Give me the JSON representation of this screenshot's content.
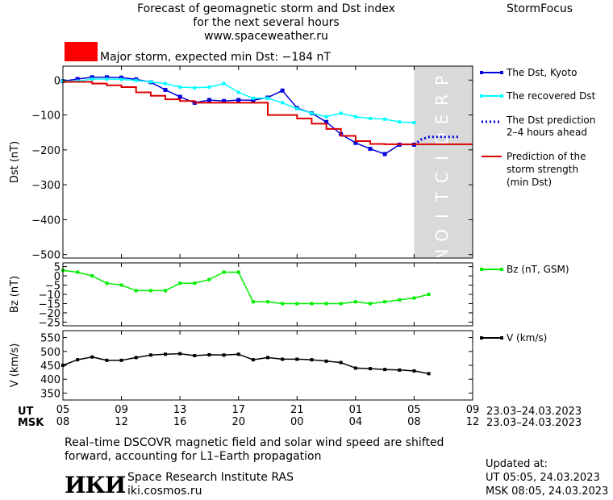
{
  "header": {
    "title_lines": [
      "Forecast of geomagnetic storm and Dst index",
      "for the next several hours",
      "www.spaceweather.ru"
    ],
    "brand": "StormFocus",
    "storm_label": "Major storm, expected min Dst: −184 nT",
    "storm_color": "#ff0000"
  },
  "colors": {
    "dst_kyoto": "#0000dd",
    "dst_recovered": "#00ffff",
    "dst_prediction": "#0000dd",
    "storm_strength": "#dd0000",
    "bz": "#00ee00",
    "v": "#000000",
    "prediction_band": "#d9d9d9"
  },
  "prediction_band": {
    "label": "PREDICTION",
    "x_start": 24,
    "x_end": 28
  },
  "time_axis": {
    "ut_label": "UT",
    "msk_label": "MSK",
    "ticks": [
      0,
      4,
      8,
      12,
      16,
      20,
      24,
      28
    ],
    "ut_ticks": [
      "05",
      "09",
      "13",
      "17",
      "21",
      "01",
      "05",
      "09"
    ],
    "msk_ticks": [
      "08",
      "12",
      "16",
      "20",
      "00",
      "04",
      "08",
      "12"
    ],
    "ut_date": "23.03–24.03.2023",
    "msk_date": "23.03–24.03.2023"
  },
  "chart_data": [
    {
      "type": "line",
      "ylabel": "Dst (nT)",
      "xlim": [
        0,
        28
      ],
      "ylim": [
        -510,
        40
      ],
      "yticks": [
        0,
        -100,
        -200,
        -300,
        -400,
        -500
      ],
      "ytick_labels": [
        "0",
        "−100",
        "−200",
        "−300",
        "−400",
        "−500"
      ],
      "series": [
        {
          "name": "The Dst, Kyoto",
          "marker": "square",
          "x": [
            0,
            1,
            2,
            3,
            4,
            5,
            6,
            7,
            8,
            9,
            10,
            11,
            12,
            13,
            14,
            15,
            16,
            17,
            18,
            19,
            20,
            21,
            22,
            23,
            24
          ],
          "values": [
            -3,
            3,
            8,
            8,
            7,
            2,
            -6,
            -28,
            -48,
            -65,
            -57,
            -60,
            -57,
            -58,
            -50,
            -30,
            -80,
            -95,
            -120,
            -155,
            -180,
            -197,
            -212,
            -185,
            -185
          ]
        },
        {
          "name": "The recovered Dst",
          "marker": "square",
          "x": [
            0,
            1,
            2,
            3,
            4,
            5,
            6,
            7,
            8,
            9,
            10,
            11,
            12,
            13,
            14,
            15,
            16,
            17,
            18,
            19,
            20,
            21,
            22,
            23,
            24
          ],
          "values": [
            -3,
            -3,
            3,
            3,
            2,
            -1,
            -5,
            -10,
            -20,
            -22,
            -20,
            -10,
            -35,
            -52,
            -52,
            -65,
            -82,
            -95,
            -105,
            -95,
            -105,
            -110,
            -112,
            -120,
            -122
          ]
        },
        {
          "name": "The Dst prediction 2–4 hours ahead",
          "style": "dotted",
          "x": [
            24,
            24.5,
            25,
            26,
            27
          ],
          "values": [
            -185,
            -170,
            -163,
            -163,
            -163
          ]
        },
        {
          "name": "Prediction of the storm strength (min Dst)",
          "style": "step",
          "x": [
            0,
            1,
            2,
            3,
            4,
            5,
            6,
            7,
            8,
            9,
            10,
            11,
            12,
            13,
            14,
            15,
            16,
            17,
            18,
            19,
            20,
            21,
            22,
            23,
            24,
            28
          ],
          "values": [
            -5,
            -5,
            -10,
            -15,
            -20,
            -35,
            -45,
            -55,
            -60,
            -65,
            -65,
            -65,
            -65,
            -65,
            -100,
            -100,
            -110,
            -125,
            -140,
            -160,
            -175,
            -183,
            -184,
            -184,
            -184,
            -184
          ]
        }
      ],
      "legend": [
        "The Dst, Kyoto",
        "The recovered Dst",
        "The Dst prediction",
        "2–4 hours ahead",
        "Prediction of the",
        "storm strength",
        "(min Dst)"
      ]
    },
    {
      "type": "line",
      "ylabel": "Bz (nT)",
      "xlim": [
        0,
        28
      ],
      "ylim": [
        -27,
        7
      ],
      "yticks": [
        5,
        0,
        -5,
        -10,
        -15,
        -20,
        -25
      ],
      "ytick_labels": [
        "5",
        "0",
        "−5",
        "−10",
        "−15",
        "−20",
        "−25"
      ],
      "series": [
        {
          "name": "Bz (nT, GSM)",
          "marker": "square",
          "x": [
            0,
            1,
            2,
            3,
            4,
            5,
            6,
            7,
            8,
            9,
            10,
            11,
            12,
            13,
            14,
            15,
            16,
            17,
            18,
            19,
            20,
            21,
            22,
            23,
            24,
            25
          ],
          "values": [
            3,
            2,
            0,
            -4,
            -5,
            -8,
            -8,
            -8,
            -4,
            -4,
            -2,
            2,
            2,
            -14,
            -14,
            -15,
            -15,
            -15,
            -15,
            -15,
            -14,
            -15,
            -14,
            -13,
            -12,
            -10
          ]
        }
      ],
      "legend": [
        "Bz (nT, GSM)"
      ]
    },
    {
      "type": "line",
      "ylabel": "V (km/s)",
      "xlim": [
        0,
        28
      ],
      "ylim": [
        325,
        575
      ],
      "yticks": [
        550,
        500,
        450,
        400,
        350
      ],
      "ytick_labels": [
        "550",
        "500",
        "450",
        "400",
        "350"
      ],
      "series": [
        {
          "name": "V (km/s)",
          "marker": "square",
          "x": [
            0,
            1,
            2,
            3,
            4,
            5,
            6,
            7,
            8,
            9,
            10,
            11,
            12,
            13,
            14,
            15,
            16,
            17,
            18,
            19,
            20,
            21,
            22,
            23,
            24,
            25
          ],
          "values": [
            450,
            470,
            480,
            468,
            468,
            478,
            487,
            490,
            492,
            485,
            488,
            487,
            490,
            470,
            478,
            472,
            472,
            470,
            465,
            460,
            440,
            438,
            435,
            433,
            430,
            420
          ]
        }
      ],
      "legend": [
        "V (km/s)"
      ]
    }
  ],
  "footer": {
    "note_lines": [
      "Real–time DSCOVR magnetic field and solar wind speed are shifted",
      "forward, accounting for L1–Earth propagation"
    ],
    "logo": "ИКИ",
    "institute": "Space Research Institute RAS",
    "site": "iki.cosmos.ru",
    "updated_label": "Updated at:",
    "updated_ut": "UT   05:05, 24.03.2023",
    "updated_msk": "MSK 08:05, 24.03.2023"
  }
}
